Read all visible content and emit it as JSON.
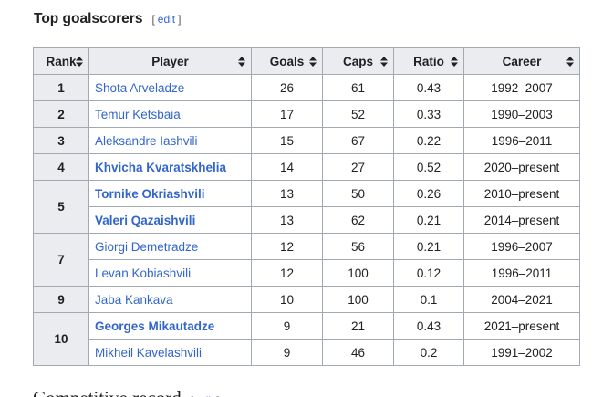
{
  "header": {
    "title": "Top goalscorers",
    "edit": "edit",
    "edit_brackets": [
      "[",
      "]"
    ]
  },
  "table": {
    "columns": [
      "Rank",
      "Player",
      "Goals",
      "Caps",
      "Ratio",
      "Career"
    ],
    "groups": [
      {
        "rank": "1",
        "players": [
          {
            "name": "Shota Arveladze",
            "bold": false,
            "goals": "26",
            "caps": "61",
            "ratio": "0.43",
            "career": "1992–2007"
          }
        ]
      },
      {
        "rank": "2",
        "players": [
          {
            "name": "Temur Ketsbaia",
            "bold": false,
            "goals": "17",
            "caps": "52",
            "ratio": "0.33",
            "career": "1990–2003"
          }
        ]
      },
      {
        "rank": "3",
        "players": [
          {
            "name": "Aleksandre Iashvili",
            "bold": false,
            "goals": "15",
            "caps": "67",
            "ratio": "0.22",
            "career": "1996–2011"
          }
        ]
      },
      {
        "rank": "4",
        "players": [
          {
            "name": "Khvicha Kvaratskhelia",
            "bold": true,
            "goals": "14",
            "caps": "27",
            "ratio": "0.52",
            "career": "2020–present"
          }
        ]
      },
      {
        "rank": "5",
        "players": [
          {
            "name": "Tornike Okriashvili",
            "bold": true,
            "goals": "13",
            "caps": "50",
            "ratio": "0.26",
            "career": "2010–present"
          },
          {
            "name": "Valeri Qazaishvili",
            "bold": true,
            "goals": "13",
            "caps": "62",
            "ratio": "0.21",
            "career": "2014–present"
          }
        ]
      },
      {
        "rank": "7",
        "players": [
          {
            "name": "Giorgi Demetradze",
            "bold": false,
            "goals": "12",
            "caps": "56",
            "ratio": "0.21",
            "career": "1996–2007"
          },
          {
            "name": "Levan Kobiashvili",
            "bold": false,
            "goals": "12",
            "caps": "100",
            "ratio": "0.12",
            "career": "1996–2011"
          }
        ]
      },
      {
        "rank": "9",
        "players": [
          {
            "name": "Jaba Kankava",
            "bold": false,
            "goals": "10",
            "caps": "100",
            "ratio": "0.1",
            "career": "2004–2021"
          }
        ]
      },
      {
        "rank": "10",
        "players": [
          {
            "name": "Georges Mikautadze",
            "bold": true,
            "goals": "9",
            "caps": "21",
            "ratio": "0.43",
            "career": "2021–present"
          },
          {
            "name": "Mikheil Kavelashvili",
            "bold": false,
            "goals": "9",
            "caps": "46",
            "ratio": "0.2",
            "career": "1991–2002"
          }
        ]
      }
    ]
  },
  "next_section": {
    "title": "Competitive record",
    "edit": "edit"
  }
}
